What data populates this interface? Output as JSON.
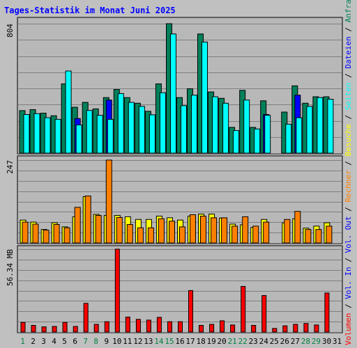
{
  "title": "Tages-Statistik im Monat Juni 2025",
  "colors": {
    "background": "#c0c0c0",
    "panel": "#b8b8b8",
    "title": "#0000ff",
    "hits": "#00805a",
    "files": "#0000ff",
    "pages": "#00ffff",
    "visits": "#ffff00",
    "sites": "#ff8000",
    "volume": "#ff0000",
    "day_weekday": "#000000",
    "day_weekend": "#008040"
  },
  "right_labels": {
    "panel1": [
      {
        "text": "Anfragen",
        "color": "#00805a"
      },
      {
        "text": "Dateien",
        "color": "#0000ff"
      },
      {
        "text": "Seiten",
        "color": "#00ffff"
      }
    ],
    "panel2": [
      {
        "text": "Besuche",
        "color": "#ffff00"
      },
      {
        "text": "Rechner",
        "color": "#ff8000"
      },
      {
        "text": "Vol. Out",
        "color": "#0000ff"
      }
    ],
    "panel3": [
      {
        "text": "Vol. In",
        "color": "#0000ff"
      },
      {
        "text": "Volumen",
        "color": "#ff0000"
      }
    ]
  },
  "chart_data": {
    "type": "bar",
    "x": [
      "1",
      "2",
      "3",
      "4",
      "5",
      "6",
      "7",
      "8",
      "9",
      "10",
      "11",
      "12",
      "13",
      "14",
      "15",
      "16",
      "17",
      "18",
      "19",
      "20",
      "21",
      "22",
      "23",
      "24",
      "25",
      "26",
      "27",
      "28",
      "29",
      "30",
      "31"
    ],
    "weekend_days": [
      "1",
      "7",
      "8",
      "14",
      "15",
      "21",
      "22",
      "28",
      "29"
    ],
    "panels": [
      {
        "ymax_label": "804",
        "ymax": 804,
        "series": [
          {
            "name": "Anfragen",
            "values": [
              264,
              270,
              248,
              232,
              430,
              285,
              315,
              275,
              345,
              395,
              345,
              310,
              260,
              430,
              804,
              345,
              400,
              740,
              380,
              340,
              160,
              390,
              160,
              325,
              0,
              255,
              418,
              310,
              350,
              350,
              0
            ]
          },
          {
            "name": "Dateien",
            "values": [
              0,
              0,
              0,
              0,
              0,
              215,
              0,
              0,
              330,
              0,
              0,
              0,
              0,
              0,
              0,
              0,
              0,
              0,
              0,
              0,
              0,
              0,
              0,
              240,
              0,
              0,
              360,
              0,
              0,
              0,
              0
            ]
          },
          {
            "name": "Seiten",
            "values": [
              240,
              245,
              220,
              210,
              510,
              175,
              265,
              235,
              210,
              370,
              315,
              290,
              238,
              375,
              740,
              295,
              360,
              690,
              350,
              310,
              140,
              330,
              150,
              235,
              0,
              180,
              220,
              290,
              345,
              335,
              0
            ]
          }
        ]
      },
      {
        "ymax_label": "247",
        "ymax": 247,
        "series": [
          {
            "name": "Besuche",
            "values": [
              68,
              62,
              40,
              60,
              48,
              78,
              138,
              85,
              82,
              82,
              78,
              70,
              70,
              80,
              75,
              68,
              80,
              86,
              86,
              74,
              56,
              54,
              46,
              70,
              0,
              60,
              72,
              44,
              50,
              60,
              0
            ]
          },
          {
            "name": "Rechner",
            "values": [
              62,
              56,
              38,
              55,
              45,
              106,
              140,
              82,
              247,
              76,
              55,
              45,
              45,
              72,
              65,
              48,
              84,
              80,
              75,
              75,
              50,
              78,
              50,
              62,
              0,
              70,
              94,
              40,
              40,
              50,
              0
            ]
          }
        ]
      },
      {
        "ymax_label": "56.34 MB",
        "ymax": 56.34,
        "series": [
          {
            "name": "Volumen",
            "values": [
              6.5,
              4.5,
              3.5,
              3.8,
              6.5,
              3.8,
              19.5,
              5.2,
              7,
              56.34,
              10.2,
              8.6,
              8.1,
              10,
              7,
              7,
              28.2,
              4.5,
              5.2,
              7.6,
              4.8,
              31,
              4.5,
              24.8,
              2.4,
              4.2,
              5.2,
              5.8,
              4.8,
              26.5,
              0
            ]
          }
        ]
      }
    ]
  }
}
